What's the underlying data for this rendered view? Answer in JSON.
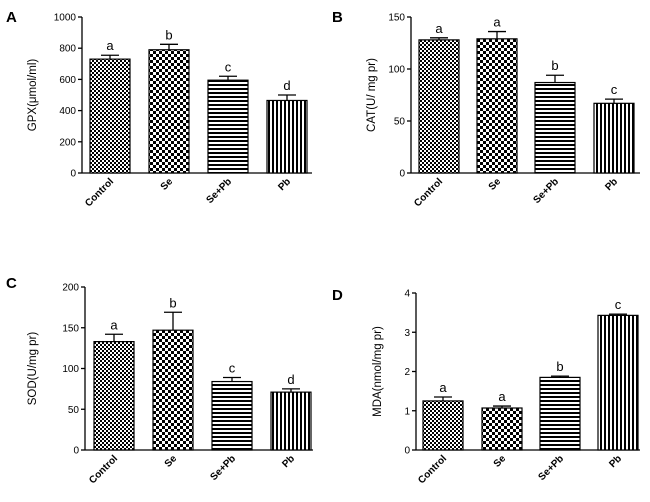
{
  "chart_data": [
    {
      "panel": "A",
      "type": "bar",
      "ylabel": "GPX(μmol/ml)",
      "categories": [
        "Control",
        "Se",
        "Se+Pb",
        "Pb"
      ],
      "values": [
        730,
        790,
        595,
        465
      ],
      "errors": [
        25,
        35,
        25,
        35
      ],
      "letters": [
        "a",
        "b",
        "c",
        "d"
      ],
      "ylim": [
        0,
        1000
      ],
      "yticks": [
        0,
        200,
        400,
        600,
        800,
        1000
      ]
    },
    {
      "panel": "B",
      "type": "bar",
      "ylabel": "CAT(U/ mg pr)",
      "categories": [
        "Control",
        "Se",
        "Se+Pb",
        "Pb"
      ],
      "values": [
        128,
        129,
        87,
        67
      ],
      "errors": [
        2,
        7,
        7,
        4
      ],
      "letters": [
        "a",
        "a",
        "b",
        "c"
      ],
      "ylim": [
        0,
        150
      ],
      "yticks": [
        0,
        50,
        100,
        150
      ]
    },
    {
      "panel": "C",
      "type": "bar",
      "ylabel": "SOD(U/mg pr)",
      "categories": [
        "Control",
        "Se",
        "Se+Pb",
        "Pb"
      ],
      "values": [
        133,
        147,
        84,
        71
      ],
      "errors": [
        9,
        22,
        5,
        4
      ],
      "letters": [
        "a",
        "b",
        "c",
        "d"
      ],
      "ylim": [
        0,
        200
      ],
      "yticks": [
        0,
        50,
        100,
        150,
        200
      ]
    },
    {
      "panel": "D",
      "type": "bar",
      "ylabel": "MDA(nmol/mg pr)",
      "categories": [
        "Control",
        "Se",
        "Se+Pb",
        "Pb"
      ],
      "values": [
        1.25,
        1.07,
        1.85,
        3.43
      ],
      "errors": [
        0.1,
        0.05,
        0.03,
        0.03
      ],
      "letters": [
        "a",
        "a",
        "b",
        "c"
      ],
      "ylim": [
        0,
        4
      ],
      "yticks": [
        0,
        1,
        2,
        3,
        4
      ]
    }
  ]
}
